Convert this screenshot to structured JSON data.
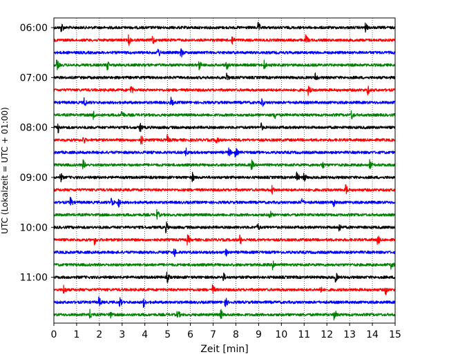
{
  "chart_data": {
    "type": "line",
    "xlabel": "Zeit  [min]",
    "ylabel": "UTC (Lokalzeit = UTC + 01:00)",
    "xlim": [
      0,
      15
    ],
    "x_ticks": [
      0,
      1,
      2,
      3,
      4,
      5,
      6,
      7,
      8,
      9,
      10,
      11,
      12,
      13,
      14,
      15
    ],
    "y_tick_labels": [
      "06:00",
      "07:00",
      "08:00",
      "09:00",
      "10:00",
      "11:00"
    ],
    "y_tick_rows": [
      0,
      4,
      8,
      12,
      16,
      20
    ],
    "grid": "vertical dotted",
    "colors": [
      "#000000",
      "#ff0000",
      "#0000ff",
      "#008000"
    ],
    "rows": [
      "06:00",
      "06:15",
      "06:30",
      "06:45",
      "07:00",
      "07:15",
      "07:30",
      "07:45",
      "08:00",
      "08:15",
      "08:30",
      "08:45",
      "09:00",
      "09:15",
      "09:30",
      "09:45",
      "10:00",
      "10:15",
      "10:30",
      "10:45",
      "11:00",
      "11:15",
      "11:30",
      "11:45"
    ],
    "events": [
      [
        0.35,
        9.0,
        13.7
      ],
      [
        3.3,
        4.35,
        7.85,
        11.1
      ],
      [
        4.6,
        5.6
      ],
      [
        0.15,
        2.35,
        6.4,
        7.6,
        9.25
      ],
      [
        7.6,
        11.5
      ],
      [
        3.4,
        11.2,
        13.8
      ],
      [
        1.35,
        5.15,
        9.15
      ],
      [
        1.75,
        3.0,
        9.7,
        13.1
      ],
      [
        0.2,
        3.8,
        9.1
      ],
      [
        1.3,
        3.85,
        5.0,
        7.15
      ],
      [
        5.8,
        7.7,
        8.0
      ],
      [
        1.3,
        8.7,
        11.8,
        13.9
      ],
      [
        0.3,
        6.1,
        10.7,
        11.0
      ],
      [
        9.6,
        12.85
      ],
      [
        0.75,
        2.55,
        2.85,
        10.9,
        12.3
      ],
      [
        4.55,
        9.5
      ],
      [
        4.95,
        8.95,
        12.55
      ],
      [
        1.8,
        5.9,
        8.2,
        14.25
      ],
      [
        5.3,
        7.55
      ],
      [
        9.65,
        14.85
      ],
      [
        5.0,
        7.45,
        12.4
      ],
      [
        0.45,
        7.0,
        11.7,
        14.6
      ],
      [
        2.0,
        2.9,
        3.95,
        7.55
      ],
      [
        1.6,
        2.45,
        5.45,
        7.35,
        12.35
      ]
    ]
  }
}
